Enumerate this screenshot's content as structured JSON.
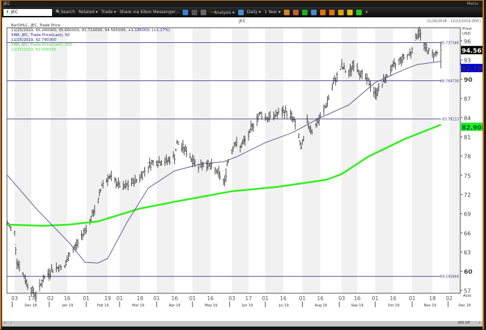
{
  "window": {
    "title": "JEC",
    "menu_label": "Menu"
  },
  "toolbar": {
    "ric_value": "JEC",
    "search": "Search",
    "related": "Related ▾",
    "trade": "Trade ▾",
    "share": "Share via Eikon Messenger...",
    "analysis": "Analysis ▾",
    "interval": "Daily ▾",
    "range": "1 Year ▾",
    "close": "x"
  },
  "chart_header": {
    "title": "JEC",
    "date_range": "11/26/2018 - 12/13/2019 (NYC)"
  },
  "legend": {
    "line1": "BarOHLC, JEC, Trade Price",
    "line2_values": "11/25/2019, 95.260000, 95.660000, 91.710000, 94.565000,",
    "line2_change": "+1.185000, (+1.27%)",
    "sma50_label": "SMA, JEC, Trade Price(Last), 50",
    "sma50_value": "11/25/2019, 92.790300",
    "sma200_label": "SMA, JEC, Trade Price(Last), 200",
    "sma200_value": "11/25/2019, 82.908325"
  },
  "price_axis": {
    "title_1": "Price",
    "title_2": "USD",
    "last_price": "94.565",
    "sma50_tag": "92.7903",
    "sma200_tag": "82.9083",
    "auto_label": "Auto"
  },
  "scrollbar": {
    "count_label": "265 DP"
  },
  "colors": {
    "bars": "#222222",
    "sma50": "#4a4a8c",
    "sma200": "#33ee22",
    "levels": "#3a3a8a",
    "last_bg": "#000000",
    "sma50_bg": "#0000dd",
    "sma200_bg": "#22ee22"
  },
  "chart_data": {
    "type": "ohlc",
    "title": "JEC",
    "ylabel": "Price USD",
    "ylim": [
      55,
      98
    ],
    "yticks": [
      57,
      60,
      63,
      66,
      69,
      72,
      75,
      78,
      81,
      84,
      87,
      90,
      93,
      96
    ],
    "last_bar": {
      "date": "2019-11-25",
      "open": 95.26,
      "high": 95.66,
      "low": 91.71,
      "close": 94.565,
      "change": 1.185,
      "change_pct": 1.27
    },
    "price": [
      [
        "2018-11-27",
        67.4
      ],
      [
        "2018-12-03",
        66.0
      ],
      [
        "2018-12-05",
        61.6
      ],
      [
        "2018-12-10",
        59.5
      ],
      [
        "2018-12-14",
        57.9
      ],
      [
        "2018-12-21",
        56.2
      ],
      [
        "2018-12-26",
        58.4
      ],
      [
        "2019-01-02",
        60.0
      ],
      [
        "2019-01-07",
        60.6
      ],
      [
        "2019-01-14",
        60.6
      ],
      [
        "2019-01-18",
        62.7
      ],
      [
        "2019-01-25",
        64.4
      ],
      [
        "2019-01-31",
        66.5
      ],
      [
        "2019-02-05",
        68.2
      ],
      [
        "2019-02-11",
        70.9
      ],
      [
        "2019-02-14",
        73.6
      ],
      [
        "2019-02-20",
        74.7
      ],
      [
        "2019-02-26",
        73.9
      ],
      [
        "2019-03-04",
        73.0
      ],
      [
        "2019-03-12",
        73.9
      ],
      [
        "2019-03-18",
        74.7
      ],
      [
        "2019-03-25",
        76.5
      ],
      [
        "2019-03-29",
        77.1
      ],
      [
        "2019-04-08",
        77.1
      ],
      [
        "2019-04-16",
        77.9
      ],
      [
        "2019-04-18",
        80.0
      ],
      [
        "2019-04-25",
        79.0
      ],
      [
        "2019-05-01",
        77.4
      ],
      [
        "2019-05-06",
        76.5
      ],
      [
        "2019-05-13",
        76.8
      ],
      [
        "2019-05-21",
        75.7
      ],
      [
        "2019-05-28",
        73.9
      ],
      [
        "2019-05-30",
        76.8
      ],
      [
        "2019-06-05",
        80.0
      ],
      [
        "2019-06-10",
        79.4
      ],
      [
        "2019-06-17",
        81.2
      ],
      [
        "2019-06-21",
        83.0
      ],
      [
        "2019-06-27",
        84.7
      ],
      [
        "2019-07-03",
        83.9
      ],
      [
        "2019-07-09",
        84.4
      ],
      [
        "2019-07-18",
        85.0
      ],
      [
        "2019-07-24",
        84.0
      ],
      [
        "2019-07-29",
        81.2
      ],
      [
        "2019-07-31",
        79.0
      ],
      [
        "2019-08-05",
        83.3
      ],
      [
        "2019-08-09",
        82.0
      ],
      [
        "2019-08-15",
        83.6
      ],
      [
        "2019-08-21",
        86.0
      ],
      [
        "2019-08-27",
        89.3
      ],
      [
        "2019-09-03",
        92.0
      ],
      [
        "2019-09-09",
        90.8
      ],
      [
        "2019-09-13",
        92.5
      ],
      [
        "2019-09-19",
        90.8
      ],
      [
        "2019-09-25",
        89.8
      ],
      [
        "2019-10-01",
        87.7
      ],
      [
        "2019-10-07",
        89.3
      ],
      [
        "2019-10-14",
        91.5
      ],
      [
        "2019-10-22",
        93.1
      ],
      [
        "2019-10-31",
        94.2
      ],
      [
        "2019-11-05",
        96.9
      ],
      [
        "2019-11-07",
        97.4
      ],
      [
        "2019-11-12",
        94.9
      ],
      [
        "2019-11-18",
        93.8
      ],
      [
        "2019-11-25",
        94.565
      ]
    ],
    "sma50": [
      [
        "2018-11-27",
        75.0
      ],
      [
        "2018-12-21",
        69.8
      ],
      [
        "2019-01-18",
        64.4
      ],
      [
        "2019-01-31",
        61.4
      ],
      [
        "2019-02-11",
        61.3
      ],
      [
        "2019-02-19",
        62.0
      ],
      [
        "2019-03-07",
        67.6
      ],
      [
        "2019-03-25",
        73.0
      ],
      [
        "2019-04-16",
        75.7
      ],
      [
        "2019-05-09",
        76.8
      ],
      [
        "2019-05-27",
        77.1
      ],
      [
        "2019-06-07",
        77.9
      ],
      [
        "2019-07-01",
        80.1
      ],
      [
        "2019-07-24",
        81.7
      ],
      [
        "2019-08-15",
        83.9
      ],
      [
        "2019-09-09",
        86.0
      ],
      [
        "2019-10-01",
        89.5
      ],
      [
        "2019-10-25",
        91.5
      ],
      [
        "2019-11-05",
        92.3
      ],
      [
        "2019-11-25",
        92.79
      ]
    ],
    "sma200": [
      [
        "2018-11-27",
        67.3
      ],
      [
        "2018-12-27",
        67.1
      ],
      [
        "2019-01-18",
        67.3
      ],
      [
        "2019-02-11",
        67.8
      ],
      [
        "2019-03-18",
        69.8
      ],
      [
        "2019-04-23",
        71.1
      ],
      [
        "2019-06-03",
        72.5
      ],
      [
        "2019-07-12",
        73.2
      ],
      [
        "2019-08-21",
        74.3
      ],
      [
        "2019-09-03",
        75.2
      ],
      [
        "2019-09-25",
        77.9
      ],
      [
        "2019-10-25",
        80.6
      ],
      [
        "2019-11-25",
        82.91
      ]
    ],
    "levels": [
      {
        "value": 95.737346,
        "label": "95.737346"
      },
      {
        "value": 89.764738,
        "label": "89.764738"
      },
      {
        "value": 83.79213,
        "label": "83.79213"
      },
      {
        "value": 59.195844,
        "label": "59.195844"
      }
    ],
    "xticks": [
      [
        "2018-12-03",
        "03"
      ],
      [
        "2018-12-17",
        "17"
      ],
      [
        "2019-01-02",
        "02"
      ],
      [
        "2019-01-16",
        "16"
      ],
      [
        "2019-02-01",
        "01"
      ],
      [
        "2019-02-19",
        "19"
      ],
      [
        "2019-03-01",
        "01"
      ],
      [
        "2019-03-18",
        "18"
      ],
      [
        "2019-04-01",
        "01"
      ],
      [
        "2019-04-16",
        "16"
      ],
      [
        "2019-05-01",
        "01"
      ],
      [
        "2019-05-16",
        "16"
      ],
      [
        "2019-06-03",
        "03"
      ],
      [
        "2019-06-17",
        "17"
      ],
      [
        "2019-07-01",
        "01"
      ],
      [
        "2019-07-16",
        "16"
      ],
      [
        "2019-08-01",
        "01"
      ],
      [
        "2019-08-16",
        "16"
      ],
      [
        "2019-09-03",
        "03"
      ],
      [
        "2019-09-16",
        "16"
      ],
      [
        "2019-10-01",
        "01"
      ],
      [
        "2019-10-16",
        "16"
      ],
      [
        "2019-11-01",
        "01"
      ],
      [
        "2019-11-18",
        "18"
      ],
      [
        "2019-12-02",
        "02"
      ]
    ],
    "months": [
      [
        "2018-12-01",
        "Dec 18"
      ],
      [
        "2019-01-01",
        "Jan 19"
      ],
      [
        "2019-02-01",
        "Feb 19"
      ],
      [
        "2019-03-01",
        "Mar 19"
      ],
      [
        "2019-04-01",
        "Apr 19"
      ],
      [
        "2019-05-01",
        "May 19"
      ],
      [
        "2019-06-01",
        "Jun 19"
      ],
      [
        "2019-07-01",
        "Jul 19"
      ],
      [
        "2019-08-01",
        "Aug 19"
      ],
      [
        "2019-09-01",
        "Sep 19"
      ],
      [
        "2019-10-01",
        "Oct 19"
      ],
      [
        "2019-11-01",
        "Nov 19"
      ],
      [
        "2019-12-01",
        "Dec 19"
      ]
    ]
  }
}
